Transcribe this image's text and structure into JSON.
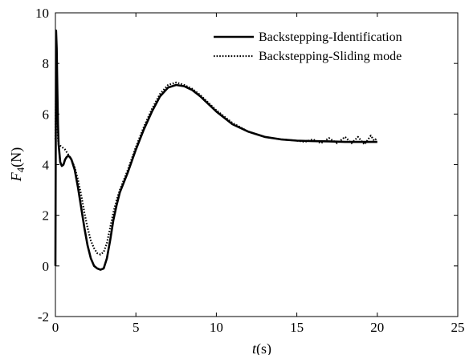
{
  "chart_data": {
    "type": "line",
    "title": "",
    "xlabel": "t(s)",
    "ylabel": "F4(N)",
    "xlabel_parts": {
      "var": "t",
      "unit": "(s)"
    },
    "ylabel_parts": {
      "var": "F",
      "sub": "4",
      "unit": "(N)"
    },
    "xlim": [
      0,
      25
    ],
    "ylim": [
      -2,
      10
    ],
    "xticks": [
      "0",
      "5",
      "10",
      "15",
      "20",
      "25"
    ],
    "yticks": [
      "-2",
      "0",
      "2",
      "4",
      "6",
      "8",
      "10"
    ],
    "grid": false,
    "legend_position": "top-right",
    "series": [
      {
        "name": "Backstepping-Identification",
        "style": "solid",
        "color": "#000000",
        "x": [
          0,
          0.04,
          0.08,
          0.12,
          0.16,
          0.2,
          0.3,
          0.4,
          0.5,
          0.6,
          0.7,
          0.8,
          0.9,
          1.0,
          1.2,
          1.4,
          1.6,
          1.8,
          2.0,
          2.2,
          2.4,
          2.6,
          2.8,
          3.0,
          3.2,
          3.4,
          3.6,
          3.8,
          4.0,
          4.5,
          5.0,
          5.5,
          6.0,
          6.5,
          7.0,
          7.5,
          8.0,
          8.5,
          9.0,
          9.5,
          10.0,
          11.0,
          12.0,
          13.0,
          14.0,
          15.0,
          16.0,
          17.0,
          18.0,
          19.0,
          20.0
        ],
        "y": [
          0,
          9.3,
          8.6,
          7.0,
          5.6,
          4.8,
          4.1,
          3.95,
          4.0,
          4.2,
          4.3,
          4.35,
          4.3,
          4.2,
          3.8,
          3.1,
          2.3,
          1.5,
          0.8,
          0.3,
          0.0,
          -0.1,
          -0.15,
          -0.1,
          0.3,
          1.0,
          1.8,
          2.4,
          2.9,
          3.7,
          4.6,
          5.4,
          6.1,
          6.7,
          7.05,
          7.15,
          7.1,
          6.95,
          6.7,
          6.4,
          6.1,
          5.6,
          5.3,
          5.1,
          5.0,
          4.95,
          4.93,
          4.92,
          4.9,
          4.9,
          4.9
        ]
      },
      {
        "name": "Backstepping-Sliding mode",
        "style": "dotted",
        "color": "#000000",
        "x": [
          0,
          0.04,
          0.08,
          0.12,
          0.16,
          0.2,
          0.3,
          0.4,
          0.6,
          0.8,
          1.0,
          1.2,
          1.4,
          1.6,
          1.8,
          2.0,
          2.2,
          2.4,
          2.6,
          2.8,
          3.0,
          3.2,
          3.4,
          3.6,
          3.8,
          4.0,
          4.5,
          5.0,
          5.5,
          6.0,
          6.5,
          7.0,
          7.5,
          8.0,
          8.5,
          9.0,
          9.5,
          10.0,
          11.0,
          12.0,
          13.0,
          14.0,
          15.0,
          15.5,
          16.0,
          16.5,
          17.0,
          17.5,
          18.0,
          18.4,
          18.8,
          19.2,
          19.6,
          19.8,
          20.0
        ],
        "y": [
          5.0,
          7.2,
          6.5,
          5.6,
          5.0,
          4.8,
          4.75,
          4.7,
          4.6,
          4.4,
          4.2,
          3.9,
          3.4,
          2.8,
          2.1,
          1.5,
          1.0,
          0.7,
          0.5,
          0.45,
          0.55,
          0.9,
          1.5,
          2.1,
          2.6,
          3.0,
          3.8,
          4.7,
          5.5,
          6.2,
          6.8,
          7.15,
          7.25,
          7.15,
          7.0,
          6.75,
          6.45,
          6.15,
          5.65,
          5.3,
          5.1,
          5.0,
          4.95,
          4.9,
          5.0,
          4.85,
          5.05,
          4.85,
          5.1,
          4.85,
          5.1,
          4.8,
          5.15,
          4.95,
          5.05
        ]
      }
    ]
  }
}
